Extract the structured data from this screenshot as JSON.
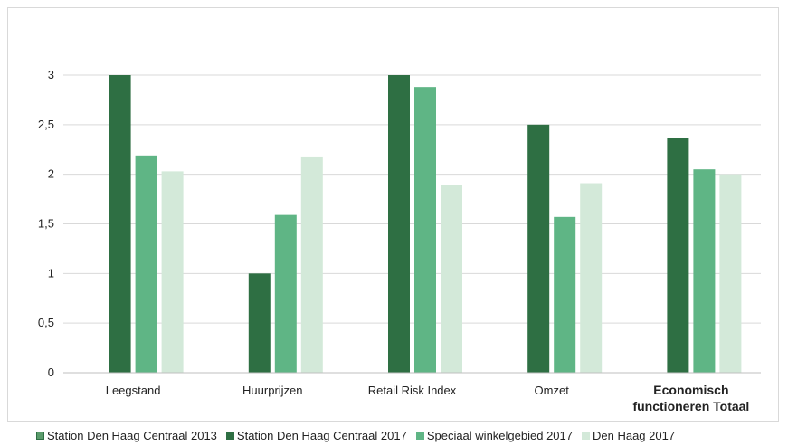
{
  "chart_data": {
    "type": "bar",
    "title": "",
    "xlabel": "",
    "ylabel": "",
    "ylim": [
      0,
      3
    ],
    "yticks": [
      "0",
      "0,5",
      "1",
      "1,5",
      "2",
      "2,5",
      "3"
    ],
    "ytick_values": [
      0,
      0.5,
      1,
      1.5,
      2,
      2.5,
      3
    ],
    "grid": true,
    "legend_position": "bottom",
    "categories": [
      [
        "Leegstand"
      ],
      [
        "Huurprijzen"
      ],
      [
        "Retail Risk Index"
      ],
      [
        "Omzet"
      ],
      [
        "Economisch",
        "functioneren Totaal"
      ]
    ],
    "bold_categories": [
      false,
      false,
      false,
      false,
      true
    ],
    "series": [
      {
        "name": "Station Den Haag Centraal 2013",
        "color": "#5a9b6b",
        "values": [
          null,
          null,
          null,
          null,
          null
        ]
      },
      {
        "name": "Station Den Haag Centraal 2017",
        "color": "#2e6f43",
        "values": [
          3,
          1,
          3,
          2.5,
          2.37
        ]
      },
      {
        "name": "Speciaal winkelgebied 2017",
        "color": "#5fb585",
        "values": [
          2.19,
          1.59,
          2.88,
          1.57,
          2.05
        ]
      },
      {
        "name": "Den Haag 2017",
        "color": "#d3e9d9",
        "values": [
          2.03,
          2.18,
          1.89,
          1.91,
          2.0
        ]
      }
    ]
  }
}
